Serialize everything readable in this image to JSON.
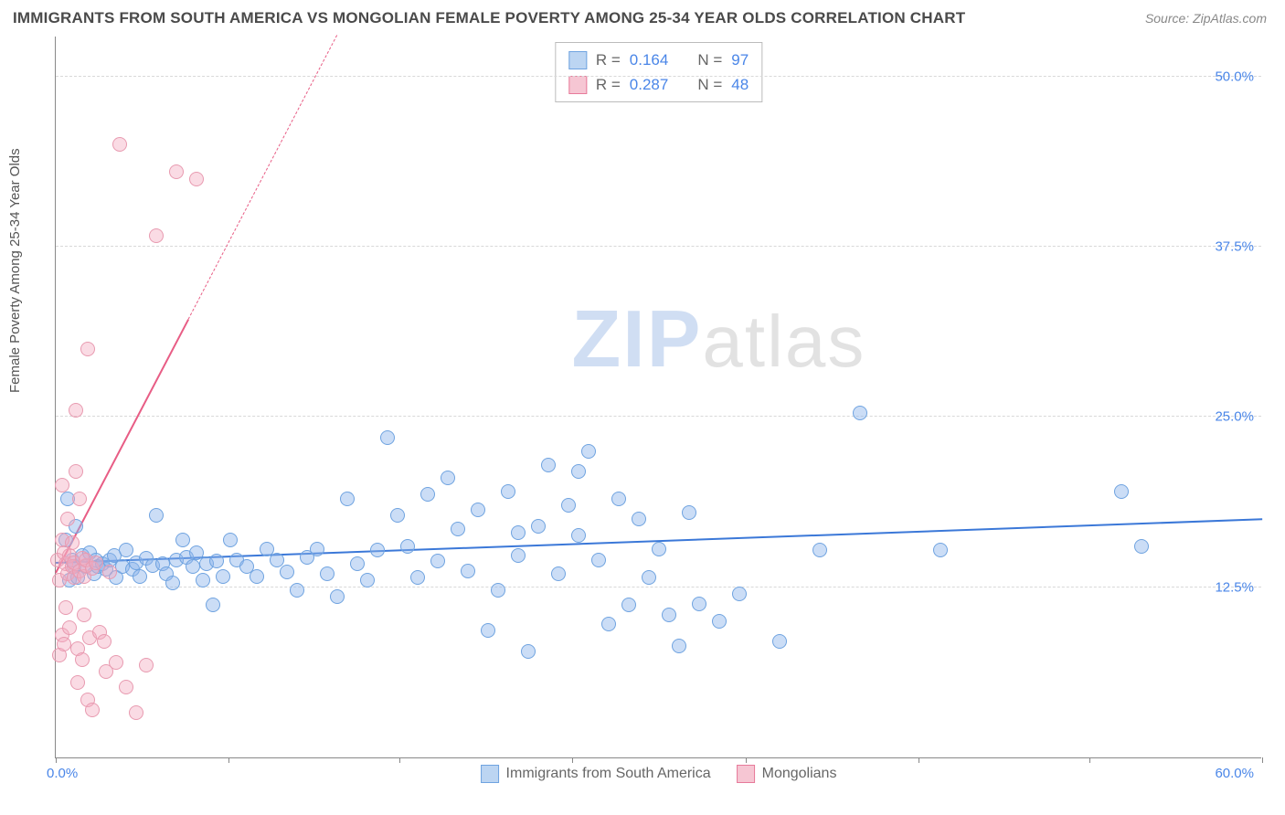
{
  "title": "IMMIGRANTS FROM SOUTH AMERICA VS MONGOLIAN FEMALE POVERTY AMONG 25-34 YEAR OLDS CORRELATION CHART",
  "source_label": "Source: ZipAtlas.com",
  "ylabel": "Female Poverty Among 25-34 Year Olds",
  "watermark_prefix": "ZIP",
  "watermark_suffix": "atlas",
  "chart": {
    "type": "scatter",
    "xlim": [
      0,
      60
    ],
    "ylim": [
      0,
      53
    ],
    "x_origin_label": "0.0%",
    "x_max_label": "60.0%",
    "x_tick_positions": [
      0,
      8.6,
      17.1,
      25.7,
      34.3,
      42.9,
      51.4,
      60
    ],
    "y_ticks": [
      {
        "v": 12.5,
        "label": "12.5%"
      },
      {
        "v": 25.0,
        "label": "25.0%"
      },
      {
        "v": 37.5,
        "label": "37.5%"
      },
      {
        "v": 50.0,
        "label": "50.0%"
      }
    ],
    "background_color": "#ffffff",
    "grid_color": "#d8d8d8",
    "axis_color": "#888888",
    "marker_radius": 8,
    "marker_stroke_width": 1.3,
    "series": [
      {
        "name": "Immigrants from South America",
        "color_fill": "rgba(140,180,235,0.45)",
        "color_stroke": "#6fa3e0",
        "legend_fill": "#bcd5f2",
        "legend_stroke": "#6fa3e0",
        "R": "0.164",
        "N": "97",
        "trend": {
          "x1": 0,
          "y1": 14.2,
          "x2": 60,
          "y2": 17.4,
          "color": "#3b78d8",
          "dashed_after_x": null
        },
        "points": [
          [
            0.5,
            16
          ],
          [
            0.6,
            19
          ],
          [
            0.7,
            13
          ],
          [
            0.8,
            14.5
          ],
          [
            0.9,
            14
          ],
          [
            1,
            17
          ],
          [
            1.1,
            13.2
          ],
          [
            1.3,
            14.8
          ],
          [
            1.5,
            14
          ],
          [
            1.7,
            15
          ],
          [
            1.9,
            13.5
          ],
          [
            2,
            14.5
          ],
          [
            2.1,
            14
          ],
          [
            2.3,
            14.2
          ],
          [
            2.5,
            13.8
          ],
          [
            2.7,
            14.5
          ],
          [
            2.9,
            14.8
          ],
          [
            3,
            13.2
          ],
          [
            3.3,
            14
          ],
          [
            3.5,
            15.2
          ],
          [
            3.8,
            13.8
          ],
          [
            4,
            14.3
          ],
          [
            4.2,
            13.3
          ],
          [
            4.5,
            14.6
          ],
          [
            4.8,
            14.1
          ],
          [
            5,
            17.8
          ],
          [
            5.3,
            14.2
          ],
          [
            5.5,
            13.5
          ],
          [
            5.8,
            12.8
          ],
          [
            6,
            14.5
          ],
          [
            6.3,
            16
          ],
          [
            6.5,
            14.7
          ],
          [
            6.8,
            14
          ],
          [
            7,
            15
          ],
          [
            7.3,
            13
          ],
          [
            7.5,
            14.2
          ],
          [
            7.8,
            11.2
          ],
          [
            8,
            14.4
          ],
          [
            8.3,
            13.3
          ],
          [
            8.7,
            16
          ],
          [
            9,
            14.5
          ],
          [
            9.5,
            14
          ],
          [
            10,
            13.3
          ],
          [
            10.5,
            15.3
          ],
          [
            11,
            14.5
          ],
          [
            11.5,
            13.6
          ],
          [
            12,
            12.3
          ],
          [
            12.5,
            14.7
          ],
          [
            13,
            15.3
          ],
          [
            13.5,
            13.5
          ],
          [
            14,
            11.8
          ],
          [
            14.5,
            19
          ],
          [
            15,
            14.2
          ],
          [
            15.5,
            13
          ],
          [
            16,
            15.2
          ],
          [
            16.5,
            23.5
          ],
          [
            17,
            17.8
          ],
          [
            17.5,
            15.5
          ],
          [
            18,
            13.2
          ],
          [
            18.5,
            19.3
          ],
          [
            19,
            14.4
          ],
          [
            19.5,
            20.5
          ],
          [
            20,
            16.8
          ],
          [
            20.5,
            13.7
          ],
          [
            21,
            18.2
          ],
          [
            21.5,
            9.3
          ],
          [
            22,
            12.3
          ],
          [
            22.5,
            19.5
          ],
          [
            23,
            14.8
          ],
          [
            23.5,
            7.8
          ],
          [
            24,
            17
          ],
          [
            24.5,
            21.5
          ],
          [
            25,
            13.5
          ],
          [
            25.5,
            18.5
          ],
          [
            26,
            16.3
          ],
          [
            26.5,
            22.5
          ],
          [
            27,
            14.5
          ],
          [
            27.5,
            9.8
          ],
          [
            28,
            19
          ],
          [
            28.5,
            11.2
          ],
          [
            29,
            17.5
          ],
          [
            29.5,
            13.2
          ],
          [
            30,
            15.3
          ],
          [
            30.5,
            10.5
          ],
          [
            31,
            8.2
          ],
          [
            31.5,
            18
          ],
          [
            32,
            11.3
          ],
          [
            33,
            10
          ],
          [
            34,
            12
          ],
          [
            36,
            8.5
          ],
          [
            38,
            15.2
          ],
          [
            40,
            25.3
          ],
          [
            44,
            15.2
          ],
          [
            53,
            19.5
          ],
          [
            54,
            15.5
          ],
          [
            26,
            21
          ],
          [
            23,
            16.5
          ]
        ]
      },
      {
        "name": "Mongolians",
        "color_fill": "rgba(244,170,190,0.42)",
        "color_stroke": "#e89ab0",
        "legend_fill": "#f6c6d3",
        "legend_stroke": "#e77a9a",
        "R": "0.287",
        "N": "48",
        "trend": {
          "x1": 0,
          "y1": 13.5,
          "x2": 14,
          "y2": 53,
          "solid_until_x": 6.6,
          "color": "#e85d85"
        },
        "points": [
          [
            0.1,
            14.5
          ],
          [
            0.2,
            13
          ],
          [
            0.3,
            16
          ],
          [
            0.2,
            7.5
          ],
          [
            0.3,
            9
          ],
          [
            0.4,
            15
          ],
          [
            0.3,
            20
          ],
          [
            0.5,
            14.2
          ],
          [
            0.4,
            8.3
          ],
          [
            0.6,
            13.5
          ],
          [
            0.5,
            11
          ],
          [
            0.7,
            14.8
          ],
          [
            0.6,
            17.5
          ],
          [
            0.8,
            14
          ],
          [
            0.7,
            9.5
          ],
          [
            0.9,
            13.2
          ],
          [
            0.8,
            15.8
          ],
          [
            1,
            21
          ],
          [
            0.9,
            14.3
          ],
          [
            1.1,
            8
          ],
          [
            1,
            25.5
          ],
          [
            1.2,
            13.7
          ],
          [
            1.1,
            5.5
          ],
          [
            1.3,
            14.6
          ],
          [
            1.2,
            19
          ],
          [
            1.4,
            13.3
          ],
          [
            1.3,
            7.2
          ],
          [
            1.5,
            14.1
          ],
          [
            1.4,
            10.5
          ],
          [
            1.6,
            30
          ],
          [
            1.5,
            14.5
          ],
          [
            1.7,
            8.8
          ],
          [
            1.6,
            4.2
          ],
          [
            1.8,
            3.5
          ],
          [
            1.8,
            13.9
          ],
          [
            2,
            14.3
          ],
          [
            2.2,
            9.2
          ],
          [
            2.4,
            8.5
          ],
          [
            2.5,
            6.3
          ],
          [
            2.7,
            13.6
          ],
          [
            3,
            7
          ],
          [
            3.2,
            45
          ],
          [
            3.5,
            5.2
          ],
          [
            4,
            3.3
          ],
          [
            4.5,
            6.8
          ],
          [
            5,
            38.3
          ],
          [
            6,
            43
          ],
          [
            7,
            42.5
          ]
        ]
      }
    ],
    "bottom_legend": [
      {
        "label": "Immigrants from South America",
        "fill": "#bcd5f2",
        "stroke": "#6fa3e0"
      },
      {
        "label": "Mongolians",
        "fill": "#f6c6d3",
        "stroke": "#e77a9a"
      }
    ]
  }
}
